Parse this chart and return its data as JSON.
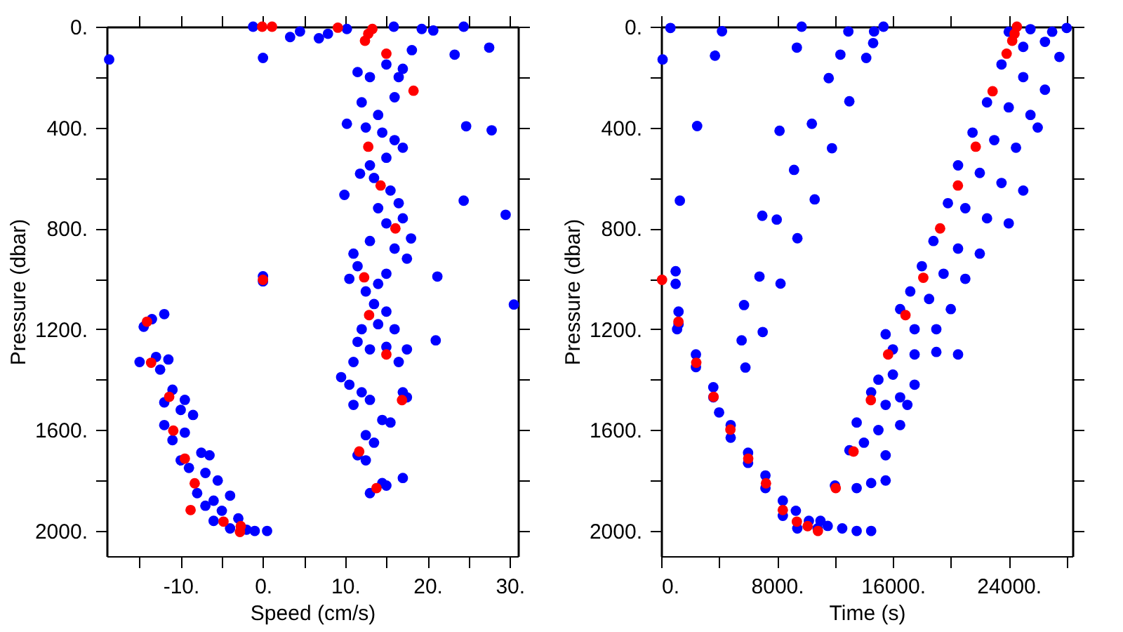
{
  "chart_data": [
    {
      "type": "scatter",
      "xlabel": "Speed (cm/s)",
      "ylabel": "Pressure (dbar)",
      "xlim": [
        -19,
        31
      ],
      "ylim": [
        2100,
        0
      ],
      "xticks": [
        {
          "value": -15,
          "label": null
        },
        {
          "value": -10,
          "label": "-10."
        },
        {
          "value": -5,
          "label": null
        },
        {
          "value": 0,
          "label": "0."
        },
        {
          "value": 5,
          "label": null
        },
        {
          "value": 10,
          "label": "10."
        },
        {
          "value": 15,
          "label": null
        },
        {
          "value": 20,
          "label": "20."
        },
        {
          "value": 25,
          "label": null
        },
        {
          "value": 30,
          "label": "30."
        }
      ],
      "yticks": [
        {
          "value": 0,
          "label": "0."
        },
        {
          "value": 200,
          "label": null
        },
        {
          "value": 400,
          "label": "400."
        },
        {
          "value": 600,
          "label": null
        },
        {
          "value": 800,
          "label": "800."
        },
        {
          "value": 1000,
          "label": null
        },
        {
          "value": 1200,
          "label": "1200."
        },
        {
          "value": 1400,
          "label": null
        },
        {
          "value": 1600,
          "label": "1600."
        },
        {
          "value": 1800,
          "label": null
        },
        {
          "value": 2000,
          "label": "2000."
        }
      ],
      "grid": false,
      "marker": "circle",
      "series": [
        {
          "color": "#0000ff",
          "x": [
            -18.7,
            0,
            3.3,
            24.4,
            23.3,
            27.5,
            24.7,
            27.8,
            24.4,
            29.5,
            30.5,
            21.2,
            21.0,
            9.9,
            10.2,
            11.8,
            -1.2,
            4.5,
            6.8,
            7.9,
            10.2,
            15.9,
            19.3,
            20.7,
            18.1,
            17.0,
            11.5,
            13,
            15,
            16.5,
            12,
            14,
            16,
            12.5,
            14.5,
            16,
            13,
            15,
            17,
            13.5,
            15.5,
            16.5,
            14,
            17,
            15,
            18,
            13,
            16,
            11,
            11.5,
            17.5,
            15,
            12.5,
            14,
            10.5,
            13.5,
            15,
            12,
            14,
            16,
            11.5,
            13,
            16.5,
            15,
            17.5,
            11,
            10.5,
            12,
            13,
            9.5,
            11,
            17,
            17.5,
            14.5,
            15.5,
            12.5,
            13.5,
            11.5,
            12.5,
            13,
            15,
            17,
            14.5,
            -14.5,
            -12,
            -13.5,
            -15,
            -13,
            -11.5,
            -12.5,
            -11,
            -9.5,
            -12,
            -10,
            -8.5,
            -12,
            -11,
            -9.5,
            -10,
            -7.5,
            -6.5,
            -9,
            -7,
            -5.5,
            -8,
            -6,
            -4,
            -7,
            -5,
            -3,
            -6,
            -4,
            -1,
            0.5,
            -2,
            0,
            0
          ],
          "values": [
            130,
            124,
            41,
            0,
            111,
            83,
            395,
            411,
            690,
            746,
            1102,
            991,
            1244,
            667,
            385,
            583,
            0,
            19,
            46,
            28,
            9,
            0,
            9,
            15,
            93,
            167,
            180,
            200,
            150,
            200,
            300,
            350,
            280,
            400,
            420,
            450,
            550,
            520,
            480,
            600,
            650,
            700,
            720,
            760,
            780,
            840,
            850,
            880,
            900,
            950,
            920,
            980,
            1050,
            1020,
            1000,
            1100,
            1130,
            1200,
            1180,
            1200,
            1250,
            1280,
            1330,
            1270,
            1280,
            1330,
            1420,
            1450,
            1480,
            1390,
            1500,
            1450,
            1470,
            1560,
            1570,
            1620,
            1650,
            1700,
            1720,
            1850,
            1820,
            1790,
            1810,
            1190,
            1140,
            1160,
            1330,
            1310,
            1320,
            1360,
            1440,
            1480,
            1490,
            1520,
            1540,
            1580,
            1640,
            1610,
            1720,
            1690,
            1700,
            1750,
            1770,
            1800,
            1850,
            1880,
            1860,
            1900,
            1920,
            1950,
            1960,
            1990,
            2000,
            2000,
            1995,
            990,
            1010
          ]
        },
        {
          "color": "#ff0000",
          "x": [
            -0.1,
            1.1,
            9.1,
            12.4,
            12.8,
            13.3,
            15.0,
            18.3,
            12.8,
            14.3,
            16.1,
            12.3,
            12.9,
            0,
            -14.1,
            -13.6,
            -11.4,
            -10.9,
            -9.5,
            -8.3,
            -8.8,
            -4.8,
            -2.7,
            -2.8,
            15.0,
            16.9,
            11.7,
            13.8
          ],
          "values": [
            0,
            0,
            4,
            56,
            28,
            9,
            107,
            254,
            476,
            630,
            800,
            994,
            1144,
            1004,
            1170,
            1333,
            1468,
            1602,
            1713,
            1811,
            1917,
            1963,
            1981,
            2004,
            1300,
            1481,
            1685,
            1830
          ]
        }
      ]
    },
    {
      "type": "scatter",
      "xlabel": "Time (s)",
      "ylabel": "Pressure (dbar)",
      "xlim": [
        0,
        28400
      ],
      "ylim": [
        2100,
        0
      ],
      "xticks": [
        {
          "value": 0,
          "label": "0."
        },
        {
          "value": 4000,
          "label": null
        },
        {
          "value": 8000,
          "label": "8000."
        },
        {
          "value": 12000,
          "label": null
        },
        {
          "value": 16000,
          "label": "16000."
        },
        {
          "value": 20000,
          "label": null
        },
        {
          "value": 24000,
          "label": "24000."
        },
        {
          "value": 28000,
          "label": null
        }
      ],
      "yticks": [
        {
          "value": 0,
          "label": "0."
        },
        {
          "value": 200,
          "label": null
        },
        {
          "value": 400,
          "label": "400."
        },
        {
          "value": 600,
          "label": null
        },
        {
          "value": 800,
          "label": "800."
        },
        {
          "value": 1000,
          "label": null
        },
        {
          "value": 1200,
          "label": "1200."
        },
        {
          "value": 1400,
          "label": null
        },
        {
          "value": 1600,
          "label": "1600."
        },
        {
          "value": 1800,
          "label": null
        },
        {
          "value": 2000,
          "label": "2000."
        }
      ],
      "grid": false,
      "marker": "circle",
      "series": [
        {
          "color": "#0000ff",
          "x": [
            640,
            4200,
            9700,
            12925,
            14700,
            15350,
            9370,
            12375,
            14160,
            14637,
            3715,
            100,
            11570,
            12994,
            2485,
            8175,
            10405,
            11793,
            9175,
            10600,
            1290,
            6982,
            7980,
            9406,
            6788,
            8242,
            5721,
            5556,
            5818,
            7011,
            1100,
            24000,
            25500,
            27000,
            28000,
            26500,
            25000,
            27500,
            23500,
            25000,
            26500,
            22500,
            24000,
            25500,
            26000,
            21500,
            23000,
            24500,
            20500,
            22000,
            23500,
            25000,
            19800,
            21000,
            22500,
            24000,
            18800,
            20500,
            22000,
            18000,
            19500,
            21000,
            17200,
            18500,
            20000,
            16500,
            17500,
            19000,
            15500,
            16000,
            17500,
            19000,
            20500,
            15000,
            16000,
            17500,
            14500,
            15500,
            16500,
            17000,
            13500,
            15000,
            16500,
            13000,
            14000,
            15500,
            12000,
            13500,
            14500,
            15500,
            11000,
            12500,
            13500,
            14500,
            11500,
            1000,
            1000,
            1200,
            1200,
            2400,
            2400,
            3600,
            3600,
            4000,
            4800,
            4800,
            6000,
            6000,
            7200,
            7200,
            8400,
            8400,
            9300,
            9400,
            10200,
            10800
          ],
          "values": [
            5,
            18,
            0,
            19,
            19,
            0,
            83,
            111,
            124,
            65,
            115,
            130,
            204,
            296,
            394,
            413,
            385,
            482,
            568,
            685,
            690,
            750,
            765,
            839,
            991,
            1019,
            1104,
            1244,
            1352,
            1211,
            1200,
            20,
            10,
            20,
            5,
            60,
            80,
            120,
            150,
            200,
            250,
            300,
            320,
            350,
            400,
            420,
            450,
            480,
            550,
            580,
            620,
            650,
            700,
            720,
            760,
            780,
            850,
            880,
            900,
            950,
            980,
            1000,
            1050,
            1080,
            1120,
            1120,
            1200,
            1200,
            1220,
            1280,
            1300,
            1290,
            1300,
            1400,
            1380,
            1420,
            1450,
            1500,
            1470,
            1500,
            1570,
            1600,
            1580,
            1680,
            1650,
            1700,
            1820,
            1830,
            1810,
            1800,
            1960,
            1990,
            2000,
            2000,
            1980,
            970,
            1020,
            1130,
            1180,
            1300,
            1350,
            1430,
            1470,
            1530,
            1580,
            1630,
            1690,
            1730,
            1780,
            1830,
            1880,
            1940,
            1920,
            1990,
            1960,
            1990
          ]
        },
        {
          "color": "#ff0000",
          "x": [
            24563,
            24400,
            24240,
            23854,
            22885,
            21721,
            20490,
            19260,
            18100,
            16870,
            60,
            1193,
            2424,
            3620,
            4781,
            6012,
            7237,
            8400,
            9370,
            10113,
            10825,
            15672,
            14478,
            13285,
            12055
          ],
          "values": [
            0,
            28,
            56,
            107,
            256,
            476,
            630,
            800,
            996,
            1144,
            1004,
            1170,
            1333,
            1468,
            1598,
            1713,
            1811,
            1917,
            1963,
            1981,
            2000,
            1300,
            1481,
            1685,
            1830
          ]
        }
      ]
    }
  ]
}
